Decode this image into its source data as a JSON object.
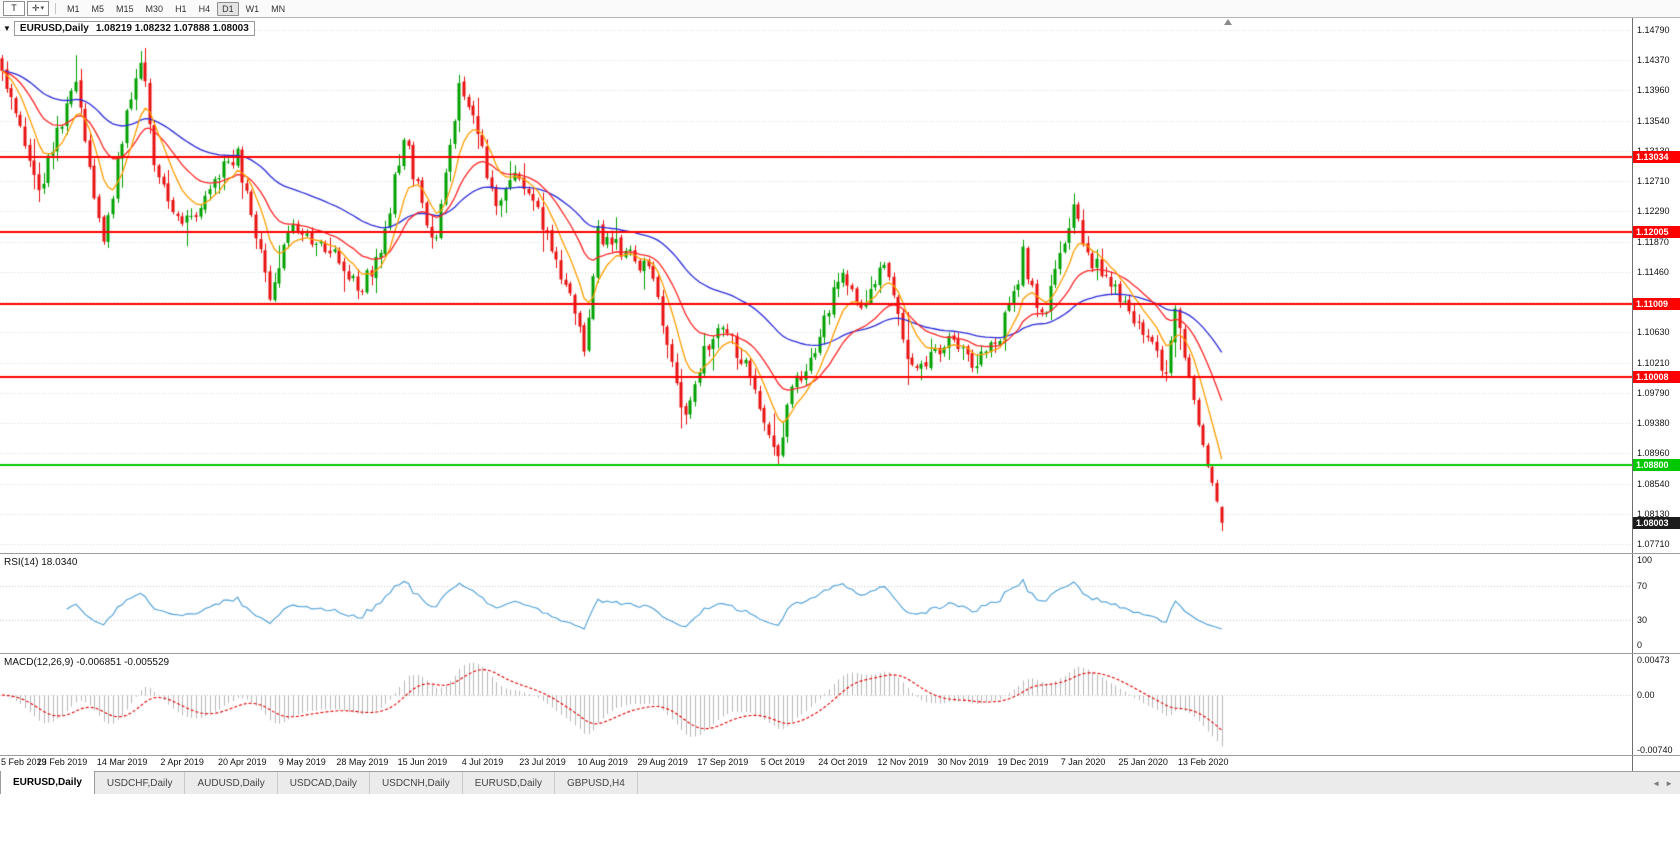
{
  "toolbar": {
    "buttons": [
      {
        "name": "templates",
        "label": "T"
      },
      {
        "name": "crosshair",
        "label": "✛",
        "caret": "▾"
      }
    ],
    "timeframes": [
      "M1",
      "M5",
      "M15",
      "M30",
      "H1",
      "H4",
      "D1",
      "W1",
      "MN"
    ],
    "active_timeframe": "D1"
  },
  "chart_header": {
    "collapse_arrow": "▼",
    "symbol": "EURUSD,Daily",
    "ohlc_text": "1.08219 1.08232 1.07888 1.08003"
  },
  "price_axis": [
    "1.14790",
    "1.14370",
    "1.13960",
    "1.13540",
    "1.13130",
    "1.12710",
    "1.12290",
    "1.11870",
    "1.11460",
    "1.11040",
    "1.10630",
    "1.10210",
    "1.09790",
    "1.09380",
    "1.08960",
    "1.08540",
    "1.08130",
    "1.07710"
  ],
  "price_badges": [
    {
      "name": "resistance-1",
      "label": "1.13034",
      "value": 1.13034,
      "bg": "#ff0000",
      "fg": "#ffffff"
    },
    {
      "name": "resistance-2",
      "label": "1.12005",
      "value": 1.12005,
      "bg": "#ff0000",
      "fg": "#ffffff"
    },
    {
      "name": "resistance-3",
      "label": "1.11009",
      "value": 1.11009,
      "bg": "#ff0000",
      "fg": "#ffffff"
    },
    {
      "name": "resistance-4",
      "label": "1.10008",
      "value": 1.10008,
      "bg": "#ff0000",
      "fg": "#ffffff"
    },
    {
      "name": "support-green",
      "label": "1.08800",
      "value": 1.088,
      "bg": "#00c800",
      "fg": "#ffffff"
    },
    {
      "name": "current-price",
      "label": "1.08003",
      "value": 1.08003,
      "bg": "#1c1c1c",
      "fg": "#ffffff"
    }
  ],
  "rsi_panel": {
    "label": "RSI(14) 18.0340",
    "axis": [
      {
        "label": "100",
        "value": 100
      },
      {
        "label": "70",
        "value": 70
      },
      {
        "label": "30",
        "value": 30
      },
      {
        "label": "0",
        "value": 0
      }
    ]
  },
  "macd_panel": {
    "label": "MACD(12,26,9) -0.006851 -0.005529",
    "axis": [
      {
        "label": "0.00473",
        "value": 0.00473
      },
      {
        "label": "0.00",
        "value": 0
      },
      {
        "label": "-0.00740",
        "value": -0.0074
      }
    ]
  },
  "date_axis": [
    "5 Feb 2019",
    "23 Feb 2019",
    "14 Mar 2019",
    "2 Apr 2019",
    "20 Apr 2019",
    "9 May 2019",
    "28 May 2019",
    "15 Jun 2019",
    "4 Jul 2019",
    "23 Jul 2019",
    "10 Aug 2019",
    "29 Aug 2019",
    "17 Sep 2019",
    "5 Oct 2019",
    "24 Oct 2019",
    "12 Nov 2019",
    "30 Nov 2019",
    "19 Dec 2019",
    "7 Jan 2020",
    "25 Jan 2020",
    "13 Feb 2020"
  ],
  "tabs": [
    {
      "label": "EURUSD,Daily",
      "active": true
    },
    {
      "label": "USDCHF,Daily",
      "active": false
    },
    {
      "label": "AUDUSD,Daily",
      "active": false
    },
    {
      "label": "USDCAD,Daily",
      "active": false
    },
    {
      "label": "USDCNH,Daily",
      "active": false
    },
    {
      "label": "EURUSD,Daily",
      "active": false
    },
    {
      "label": "GBPUSD,H4",
      "active": false
    }
  ],
  "tab_scroll": {
    "left": "◄",
    "right": "►"
  },
  "chart_data": {
    "type": "candlestick",
    "title": "EURUSD,Daily",
    "last_ohlc": {
      "open": 1.08219,
      "high": 1.08232,
      "low": 1.07888,
      "close": 1.08003
    },
    "x_axis": {
      "labels": [
        "5 Feb 2019",
        "23 Feb 2019",
        "14 Mar 2019",
        "2 Apr 2019",
        "20 Apr 2019",
        "9 May 2019",
        "28 May 2019",
        "15 Jun 2019",
        "4 Jul 2019",
        "23 Jul 2019",
        "10 Aug 2019",
        "29 Aug 2019",
        "17 Sep 2019",
        "5 Oct 2019",
        "24 Oct 2019",
        "12 Nov 2019",
        "30 Nov 2019",
        "19 Dec 2019",
        "7 Jan 2020",
        "25 Jan 2020",
        "13 Feb 2020"
      ],
      "candles_per_label": 13,
      "visible_candles": 265
    },
    "y_axis": {
      "ticks": [
        1.1479,
        1.1437,
        1.1396,
        1.1354,
        1.1313,
        1.1271,
        1.1229,
        1.1187,
        1.1146,
        1.1104,
        1.1063,
        1.1021,
        1.0979,
        1.0938,
        1.0896,
        1.0854,
        1.0813,
        1.0771
      ],
      "range": [
        1.0771,
        1.1479
      ],
      "grid": "dotted"
    },
    "price_anchors": [
      [
        0,
        1.143
      ],
      [
        3,
        1.136
      ],
      [
        8,
        1.1255
      ],
      [
        12,
        1.134
      ],
      [
        16,
        1.14
      ],
      [
        22,
        1.1185
      ],
      [
        26,
        1.133
      ],
      [
        30,
        1.1445
      ],
      [
        33,
        1.13
      ],
      [
        37,
        1.122
      ],
      [
        43,
        1.1225
      ],
      [
        47,
        1.128
      ],
      [
        51,
        1.1305
      ],
      [
        58,
        1.1115
      ],
      [
        63,
        1.1215
      ],
      [
        67,
        1.119
      ],
      [
        73,
        1.116
      ],
      [
        77,
        1.112
      ],
      [
        82,
        1.117
      ],
      [
        87,
        1.1335
      ],
      [
        92,
        1.121
      ],
      [
        94,
        1.119
      ],
      [
        99,
        1.1405
      ],
      [
        102,
        1.137
      ],
      [
        107,
        1.123
      ],
      [
        111,
        1.1275
      ],
      [
        117,
        1.1215
      ],
      [
        121,
        1.1145
      ],
      [
        125,
        1.1075
      ],
      [
        126,
        1.104
      ],
      [
        129,
        1.12
      ],
      [
        134,
        1.1175
      ],
      [
        141,
        1.114
      ],
      [
        148,
        1.094
      ],
      [
        152,
        1.104
      ],
      [
        156,
        1.1075
      ],
      [
        161,
        1.1015
      ],
      [
        165,
        1.0945
      ],
      [
        168,
        1.09
      ],
      [
        171,
        1.0985
      ],
      [
        176,
        1.104
      ],
      [
        182,
        1.115
      ],
      [
        186,
        1.1085
      ],
      [
        191,
        1.1165
      ],
      [
        196,
        1.1025
      ],
      [
        200,
        1.102
      ],
      [
        205,
        1.106
      ],
      [
        211,
        1.1018
      ],
      [
        216,
        1.106
      ],
      [
        220,
        1.114
      ],
      [
        221,
        1.117
      ],
      [
        225,
        1.108
      ],
      [
        232,
        1.123
      ],
      [
        236,
        1.116
      ],
      [
        241,
        1.112
      ],
      [
        248,
        1.1055
      ],
      [
        252,
        1.101
      ],
      [
        254,
        1.109
      ],
      [
        257,
        1.1
      ],
      [
        260,
        1.0905
      ],
      [
        263,
        1.083
      ],
      [
        264,
        1.08003
      ]
    ],
    "horizontal_lines": [
      {
        "value": 1.13034,
        "color": "#ff0000"
      },
      {
        "value": 1.12005,
        "color": "#ff0000"
      },
      {
        "value": 1.11009,
        "color": "#ff0000"
      },
      {
        "value": 1.10008,
        "color": "#ff0000"
      },
      {
        "value": 1.088,
        "color": "#00c800"
      }
    ],
    "moving_averages": [
      {
        "type": "ema",
        "period": 8,
        "color": "#ff9d00"
      },
      {
        "type": "ema",
        "period": 20,
        "color": "#ff2626"
      },
      {
        "type": "ema",
        "period": 50,
        "color": "#2c2cd8"
      }
    ],
    "indicators": [
      {
        "name": "RSI",
        "period": 14,
        "current": 18.034,
        "levels": [
          100,
          70,
          30,
          0
        ],
        "color": "#4d9fd6"
      },
      {
        "name": "MACD",
        "fast": 12,
        "slow": 26,
        "signal": 9,
        "current_macd": -0.006851,
        "current_signal": -0.005529,
        "scale": [
          0.00473,
          0.0,
          -0.0074
        ],
        "histogram_color": "#b9b9b9",
        "signal_color": "#e00000"
      }
    ],
    "up_color": "#00a000",
    "down_color": "#e81010"
  }
}
